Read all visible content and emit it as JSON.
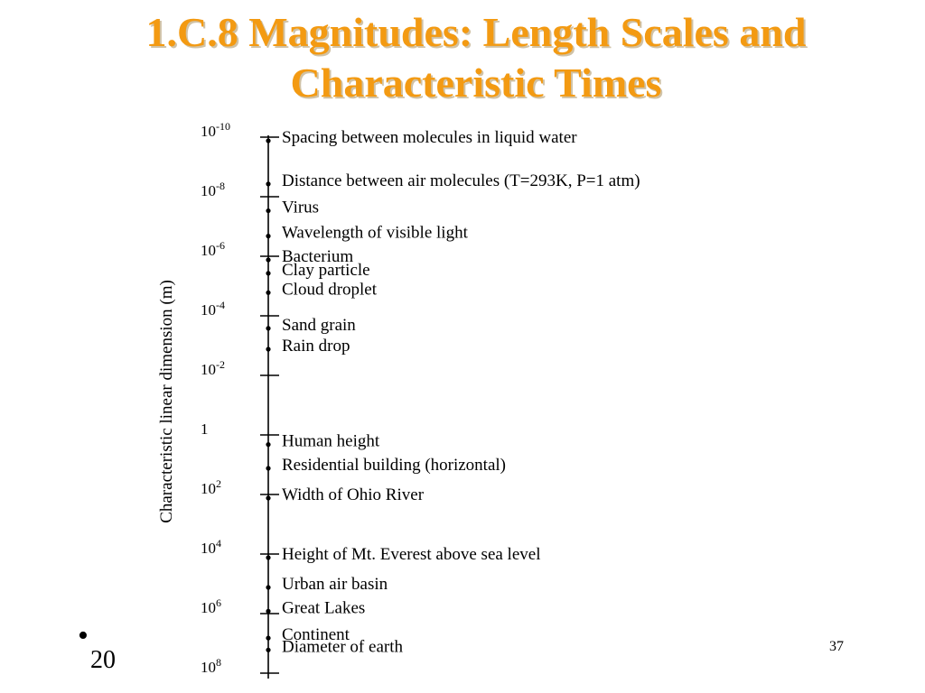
{
  "slide": {
    "title_line1": "1.C.8 Magnitudes: Length Scales and",
    "title_line2": "Characteristic Times",
    "bullet_text": "20",
    "page_number": "37",
    "title_color": "#f39a12"
  },
  "figure": {
    "axis_title": "Characteristic linear dimension (m)",
    "scale": "log",
    "tick_labels": [
      {
        "base": "10",
        "exp": "-10",
        "value_log10": -10
      },
      {
        "base": "10",
        "exp": "-8",
        "value_log10": -8
      },
      {
        "base": "10",
        "exp": "-6",
        "value_log10": -6
      },
      {
        "base": "10",
        "exp": "-4",
        "value_log10": -4
      },
      {
        "base": "10",
        "exp": "-2",
        "value_log10": -2
      },
      {
        "base": "1",
        "exp": "",
        "value_log10": 0
      },
      {
        "base": "10",
        "exp": "2",
        "value_log10": 2
      },
      {
        "base": "10",
        "exp": "4",
        "value_log10": 4
      },
      {
        "base": "10",
        "exp": "6",
        "value_log10": 6
      },
      {
        "base": "10",
        "exp": "8",
        "value_log10": 8
      }
    ],
    "items": [
      {
        "label": "Spacing between molecules in liquid water",
        "value_log10": -10.0
      },
      {
        "label": "Distance between air molecules (T=293K, P=1 atm)",
        "value_log10": -8.55
      },
      {
        "label": "Virus",
        "value_log10": -7.65
      },
      {
        "label": "Wavelength of visible light",
        "value_log10": -6.8
      },
      {
        "label": "Bacterium",
        "value_log10": -6.0
      },
      {
        "label": "Clay particle",
        "value_log10": -5.55
      },
      {
        "label": "Cloud droplet",
        "value_log10": -4.9
      },
      {
        "label": "Sand grain",
        "value_log10": -3.7
      },
      {
        "label": "Rain drop",
        "value_log10": -3.0
      },
      {
        "label": "Human height",
        "value_log10": 0.2
      },
      {
        "label": "Residential building (horizontal)",
        "value_log10": 1.0
      },
      {
        "label": "Width of Ohio River",
        "value_log10": 2.0
      },
      {
        "label": "Height of Mt. Everest above sea level",
        "value_log10": 4.0
      },
      {
        "label": "Urban air basin",
        "value_log10": 5.0
      },
      {
        "label": "Great Lakes",
        "value_log10": 5.8
      },
      {
        "label": "Continent",
        "value_log10": 6.7
      },
      {
        "label": "Diameter of earth",
        "value_log10": 7.1
      }
    ]
  }
}
